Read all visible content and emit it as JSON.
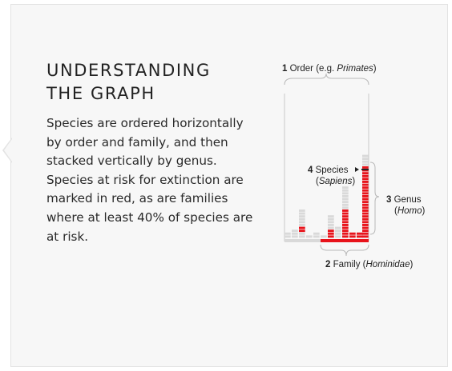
{
  "panel": {
    "title_line1": "UNDERSTANDING",
    "title_line2": "THE GRAPH",
    "description": "Species are ordered horizontally by order and family, and then stacked vertically by genus. Species at risk for extinction are marked in red, as are families where at least 40% of species are at risk."
  },
  "diagram": {
    "order": {
      "number": "1",
      "label": "Order (e.g. ",
      "italic": "Primates",
      "suffix": ")"
    },
    "species": {
      "number": "4",
      "label": "Species",
      "italic": "Sapiens",
      "prefix": "(",
      "suffix": ")"
    },
    "genus": {
      "number": "3",
      "label": "Genus",
      "italic": "Homo",
      "prefix": "(",
      "suffix": ")"
    },
    "family": {
      "number": "2",
      "label": "Family (",
      "italic": "Hominidae",
      "suffix": ")"
    }
  },
  "colors": {
    "at_risk": "#e8131b",
    "not_at_risk": "#d9d9d9",
    "stroke": "#b8b8b8",
    "text": "#222222"
  }
}
